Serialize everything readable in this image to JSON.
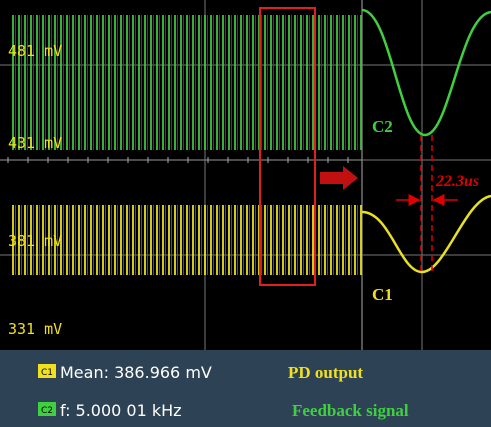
{
  "scope": {
    "levels": [
      "481 mV",
      "431 mV",
      "381 mV",
      "331 mV"
    ],
    "channels": [
      {
        "badge": "C1",
        "readout": "Mean: 386.966 mV",
        "caption": "PD output"
      },
      {
        "badge": "C2",
        "readout": "f: 5.000 01 kHz",
        "caption": "Feedback signal"
      }
    ],
    "annotations": {
      "c2": "C2",
      "c1": "C1",
      "delay": "22.3us"
    }
  }
}
